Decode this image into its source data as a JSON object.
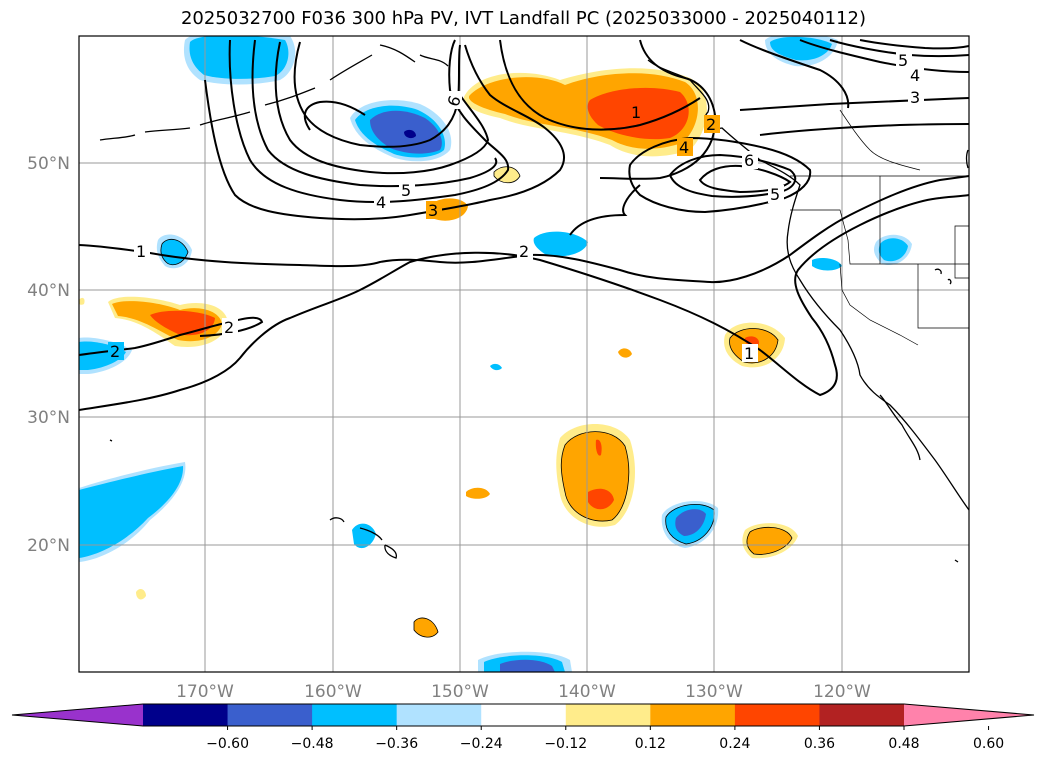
{
  "title": "2025032700 F036 300 hPa PV, IVT Landfall PC (2025033000 - 2025040112)",
  "map": {
    "lon_labels": [
      "170°W",
      "160°W",
      "150°W",
      "140°W",
      "130°W",
      "120°W"
    ],
    "lat_labels": [
      "50°N",
      "40°N",
      "30°N",
      "20°N"
    ]
  },
  "colorbar": {
    "ticks": [
      "−0.60",
      "−0.48",
      "−0.36",
      "−0.24",
      "−0.12",
      "0.12",
      "0.24",
      "0.36",
      "0.48",
      "0.60"
    ],
    "colors": [
      "#9932cc",
      "#00008b",
      "#3a5fcd",
      "#00bfff",
      "#b0e2ff",
      "#ffffff",
      "#ffec8b",
      "#ffa500",
      "#ff4500",
      "#b22222",
      "#ff82ab"
    ]
  },
  "contour_labels": [
    "1",
    "2",
    "3",
    "4",
    "5",
    "6"
  ]
}
